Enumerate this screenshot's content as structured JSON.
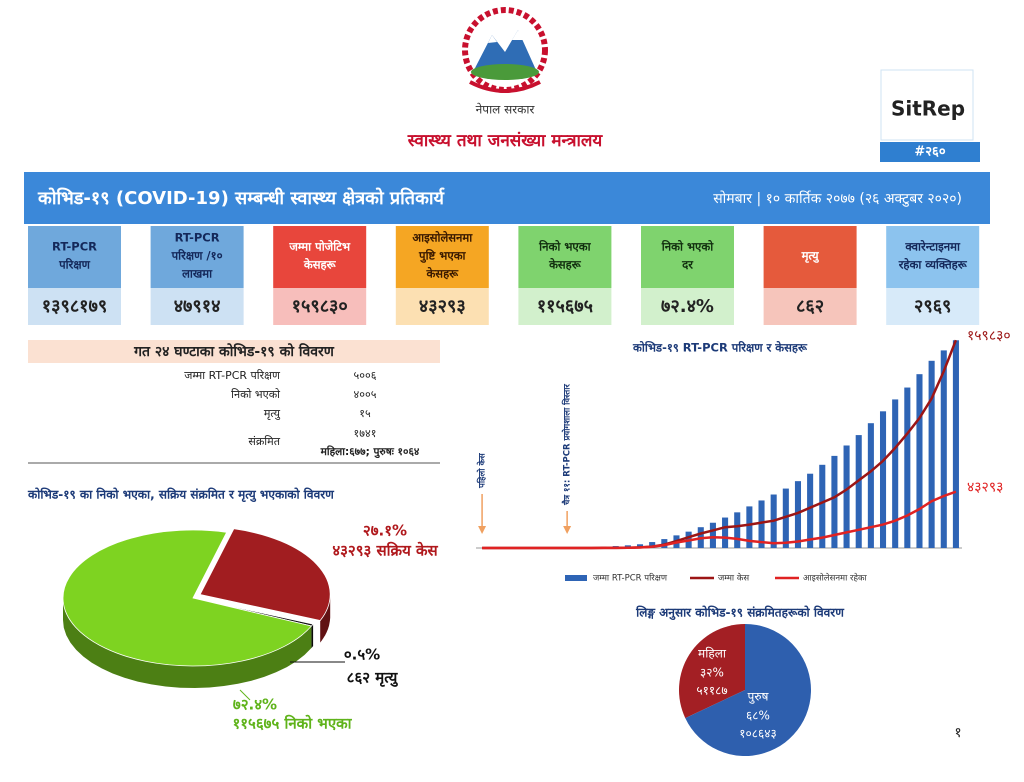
{
  "header": {
    "government": "नेपाल सरकार",
    "ministry": "स्वास्थ्य तथा जनसंख्या मन्त्रालय",
    "sitrep": "SitRep",
    "issue": "#२६०"
  },
  "banner": {
    "title": "कोभिड-१९ (COVID-19) सम्बन्धी स्वास्थ्य क्षेत्रको प्रतिकार्य",
    "date": "सोमबार | १० कार्तिक २०७७ (२६ अक्टुबर २०२०)"
  },
  "cards": [
    {
      "label": [
        "RT-PCR",
        "परिक्षण"
      ],
      "value": "१३९८१७९",
      "color": "#6fa8dc"
    },
    {
      "label": [
        "RT-PCR",
        "परिक्षण /१०",
        "लाखमा"
      ],
      "value": "४७९१४",
      "color": "#6fa8dc"
    },
    {
      "label": [
        "जम्मा पोजेटिभ",
        "केसहरू"
      ],
      "value": "१५९८३०",
      "color": "#e8463c"
    },
    {
      "label": [
        "आइसोलेसनमा",
        "पुष्टि भएका",
        "केसहरू"
      ],
      "value": "४३२९३",
      "color": "#f5a623"
    },
    {
      "label": [
        "निको भएका",
        "केसहरू"
      ],
      "value": "११५६७५",
      "color": "#7fd36e"
    },
    {
      "label": [
        "निको भएको",
        "दर"
      ],
      "value": "७२.४%",
      "color": "#7fd36e"
    },
    {
      "label": [
        "मृत्यु"
      ],
      "value": "८६२",
      "color": "#e55a3c"
    },
    {
      "label": [
        "क्वारेन्टाइनमा",
        "रहेका व्यक्तिहरू"
      ],
      "value": "२९६९",
      "color": "#8cc3ee"
    }
  ],
  "last_24h": {
    "title": "गत २४ घण्टाका कोभिड-१९ को विवरण",
    "rows": [
      [
        "जम्मा RT-PCR परिक्षण",
        "५००६"
      ],
      [
        "निको भएको",
        "४००५"
      ],
      [
        "मृत्यु",
        "१५"
      ],
      [
        "संक्रमित",
        "१७४१"
      ]
    ],
    "note": "महिला:६७७; पुरुषः १०६४"
  },
  "page_number": "१",
  "chart_data": [
    {
      "type": "bar-line",
      "title": "कोभिड-१९ RT-PCR परिक्षण र केसहरू",
      "categories": [
        null,
        null,
        null,
        null,
        null,
        null,
        null,
        null,
        null,
        null,
        null,
        null,
        null,
        null,
        null,
        null,
        null,
        null,
        null,
        null,
        null,
        null,
        null,
        null,
        null,
        null,
        null,
        null,
        null,
        null,
        null,
        null,
        null,
        null,
        null,
        null,
        null,
        null,
        null,
        null
      ],
      "series": [
        {
          "name": "जम्मा RT-PCR परिक्षण",
          "type": "bar",
          "color": "#2e64b5",
          "values": [
            10,
            100,
            300,
            600,
            900,
            1200,
            1600,
            2500,
            4000,
            6000,
            9000,
            13000,
            18000,
            25000,
            40000,
            60000,
            85000,
            110000,
            140000,
            170000,
            205000,
            240000,
            280000,
            320000,
            360000,
            400000,
            450000,
            500000,
            560000,
            620000,
            690000,
            760000,
            840000,
            920000,
            1000000,
            1080000,
            1170000,
            1260000,
            1330000,
            1398179
          ]
        },
        {
          "name": "जम्मा केस",
          "type": "line",
          "axis": "y2",
          "color": "#9c1515",
          "end_label": "१५९८३०",
          "values": [
            1,
            1,
            1,
            1,
            1,
            1,
            5,
            9,
            16,
            31,
            57,
            82,
            217,
            427,
            1042,
            2634,
            5335,
            8274,
            11162,
            13564,
            15964,
            16801,
            17994,
            19547,
            21000,
            24000,
            27000,
            31000,
            35000,
            39000,
            45000,
            52000,
            59000,
            67000,
            77000,
            88000,
            100000,
            115000,
            136000,
            159830
          ]
        },
        {
          "name": "आइसोलेसनमा रहेका",
          "type": "line",
          "axis": "y2",
          "color": "#e02222",
          "end_label": "४३२९३",
          "values": [
            0,
            0,
            0,
            0,
            0,
            0,
            4,
            8,
            14,
            25,
            40,
            60,
            180,
            360,
            900,
            2200,
            4200,
            5800,
            7500,
            8200,
            8000,
            7000,
            5500,
            4500,
            3600,
            4000,
            5000,
            6500,
            8000,
            10000,
            12000,
            14000,
            16000,
            18000,
            21000,
            25000,
            30000,
            36000,
            40000,
            43293
          ]
        }
      ],
      "ylim": [
        0,
        1400000
      ],
      "y2lim": [
        0,
        160000
      ],
      "annotations": [
        "पहिलो केस",
        "चैत्र ११: RT-PCR प्रयोगशाला विस्तार"
      ],
      "legend": "bottom"
    },
    {
      "type": "pie3d",
      "title": "कोभिड-१९ का निको भएका, सक्रिय संक्रमित र मृत्यु भएकाको विवरण",
      "categories": [
        "४३२९३ सक्रिय केस",
        "८६२ मृत्यु",
        "११५६७५ निको भएका"
      ],
      "values": [
        27.1,
        0.5,
        72.4
      ],
      "value_labels": [
        "२७.१%",
        "०.५%",
        "७२.४%"
      ],
      "colors": [
        "#a11d20",
        "#111111",
        "#7ed321"
      ]
    },
    {
      "type": "pie",
      "title": "लिङ्ग अनुसार कोभिड-१९ संक्रमितहरूको विवरण",
      "categories": [
        "महिला",
        "पुरुष"
      ],
      "values": [
        32,
        68
      ],
      "value_labels": [
        "३२%",
        "६८%"
      ],
      "count_labels": [
        "५११८७",
        "१०८६४३"
      ],
      "colors": [
        "#a31f24",
        "#2e5fae"
      ]
    }
  ]
}
